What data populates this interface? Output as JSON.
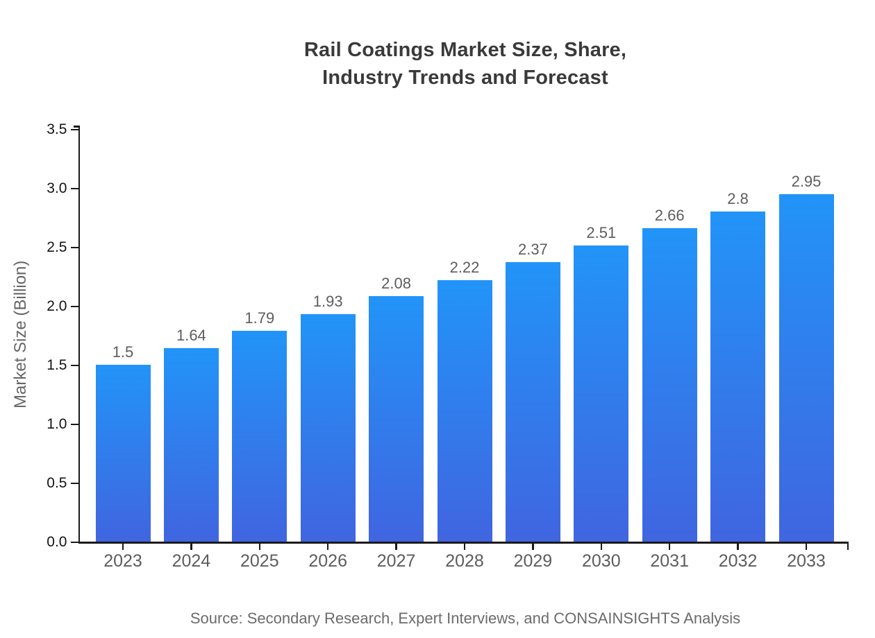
{
  "title": {
    "line1": "Rail Coatings Market Size, Share,",
    "line2": "Industry Trends and Forecast"
  },
  "source": "Source: Secondary Research, Expert Interviews, and CONSAINSIGHTS Analysis",
  "chart_data": {
    "type": "bar",
    "title": "Rail Coatings Market Size, Share, Industry Trends and Forecast",
    "categories": [
      "2023",
      "2024",
      "2025",
      "2026",
      "2027",
      "2028",
      "2029",
      "2030",
      "2031",
      "2032",
      "2033"
    ],
    "values": [
      1.5,
      1.64,
      1.79,
      1.93,
      2.08,
      2.22,
      2.37,
      2.51,
      2.66,
      2.8,
      2.95
    ],
    "bar_labels": [
      "1.5",
      "1.64",
      "1.79",
      "1.93",
      "2.08",
      "2.22",
      "2.37",
      "2.51",
      "2.66",
      "2.8",
      "2.95"
    ],
    "xlabel": "",
    "ylabel": "Market Size (Billion)",
    "ylim": [
      0,
      3.5
    ],
    "ytick_step": 0.5,
    "grid": "off",
    "legend": "none",
    "colors": {
      "bar_gradient_top": "#2294F8",
      "bar_gradient_bottom": "#4065E0",
      "axis": "#1a1a1a",
      "tick_label": "#141414",
      "category_label": "#5d5d5d",
      "value_label": "#5d5d5d",
      "title": "#3a3a3a",
      "source": "#6b6b6b"
    }
  }
}
